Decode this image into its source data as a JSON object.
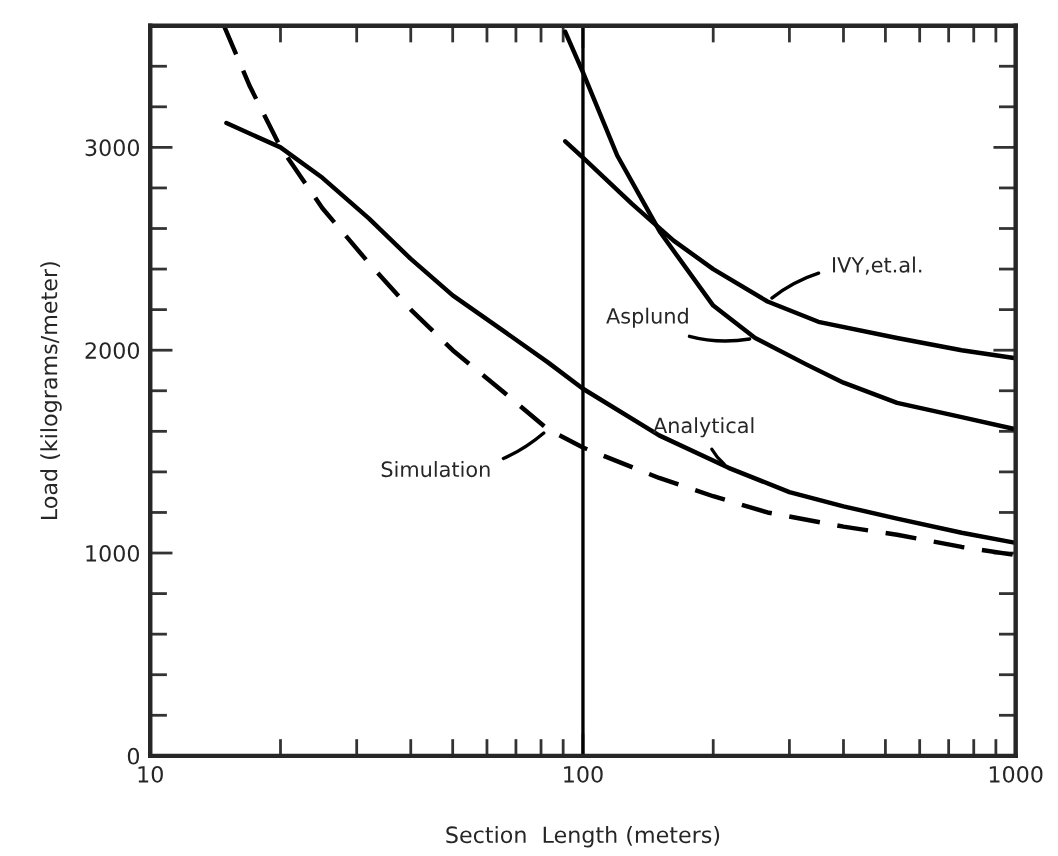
{
  "chart_data": {
    "type": "line",
    "xlabel": "Section  Length (meters)",
    "ylabel": "Load (kilograms/meter)",
    "log": "x",
    "xlim": [
      10,
      1000
    ],
    "xticks": [
      10,
      100,
      1000
    ],
    "ylim": [
      0,
      3600
    ],
    "yticks": [
      0,
      1000,
      2000,
      3000
    ],
    "grid": false,
    "legend": false,
    "marker": "none",
    "series": [
      {
        "name": "Simulation",
        "color": "#000000",
        "line_style": "dashed",
        "x": [
          14.8,
          17,
          20,
          25,
          32,
          40,
          50,
          65,
          83,
          100,
          150,
          200,
          267,
          400,
          532,
          750,
          1000
        ],
        "values": [
          3600,
          3300,
          3000,
          2700,
          2430,
          2200,
          2000,
          1800,
          1610,
          1520,
          1370,
          1280,
          1200,
          1130,
          1090,
          1030,
          990
        ]
      },
      {
        "name": "Analytical",
        "color": "#000000",
        "line_style": "solid",
        "x": [
          15,
          20,
          25,
          32,
          40,
          50,
          65,
          83,
          100,
          150,
          217,
          300,
          400,
          532,
          750,
          1000
        ],
        "values": [
          3120,
          3000,
          2850,
          2650,
          2450,
          2270,
          2100,
          1940,
          1810,
          1580,
          1420,
          1300,
          1230,
          1170,
          1100,
          1050
        ]
      },
      {
        "name": "Asplund",
        "color": "#000000",
        "line_style": "solid",
        "x": [
          91,
          100,
          120,
          151,
          200,
          250,
          328,
          400,
          532,
          750,
          1000
        ],
        "values": [
          3570,
          3370,
          2960,
          2580,
          2220,
          2060,
          1930,
          1840,
          1740,
          1670,
          1610
        ]
      },
      {
        "name": "IVY,et.al.",
        "color": "#000000",
        "line_style": "solid",
        "x": [
          91,
          100,
          130,
          162,
          200,
          267,
          350,
          532,
          750,
          1000
        ],
        "values": [
          3030,
          2950,
          2720,
          2540,
          2400,
          2240,
          2140,
          2060,
          2000,
          1960
        ]
      }
    ],
    "ref_lines": [
      {
        "axis": "x",
        "value": 100,
        "color": "#000000"
      }
    ]
  }
}
